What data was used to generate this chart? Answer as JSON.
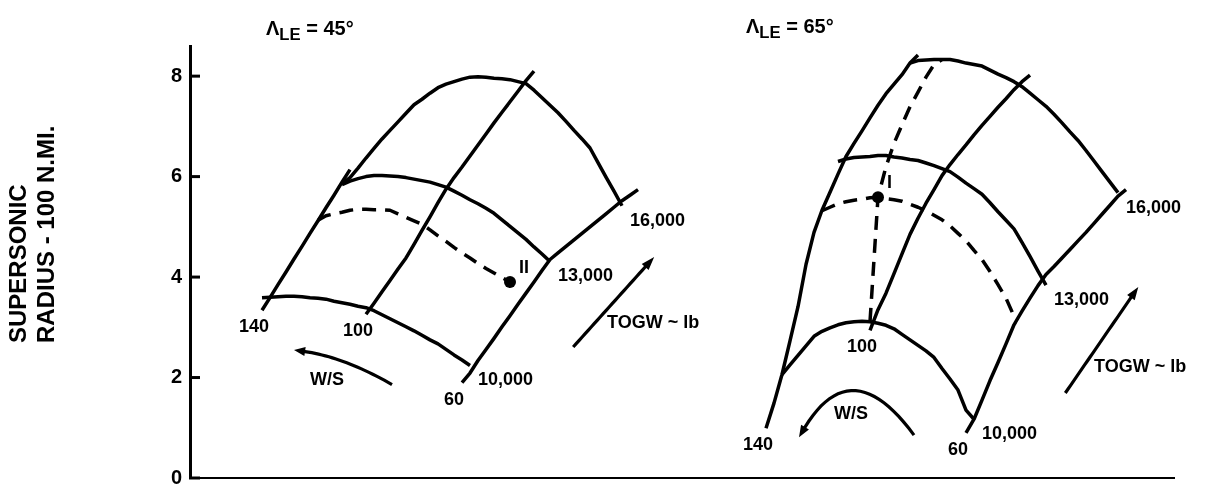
{
  "chart_data": {
    "type": "line",
    "ylabel": "SUPERSONIC RADIUS - 100 N.MI.",
    "ylim": [
      0,
      8.6
    ],
    "yticks": [
      0,
      2,
      4,
      6,
      8
    ],
    "tick_labels": "y",
    "marker": "none",
    "categories": [
      null,
      null,
      null,
      null,
      null,
      null,
      null,
      null,
      null,
      null,
      null,
      null,
      null,
      null,
      null,
      null,
      null,
      null,
      null,
      null,
      null,
      null,
      null,
      null,
      null,
      null,
      null,
      null,
      null,
      null,
      null,
      null,
      null,
      null,
      null,
      null,
      null,
      null,
      null,
      null,
      null,
      null,
      null,
      null,
      null,
      null,
      null,
      null,
      null,
      null,
      null,
      null,
      null,
      null,
      null,
      null,
      null,
      null,
      null,
      null,
      null,
      null,
      null,
      null,
      null,
      null,
      null,
      null,
      null,
      null,
      null,
      null,
      null,
      null,
      null,
      null,
      null,
      null,
      null,
      null,
      null,
      null,
      null,
      null,
      null,
      null,
      null,
      null,
      null,
      null,
      null,
      null,
      null,
      null,
      null,
      null,
      null,
      null,
      null,
      null,
      null,
      null,
      null,
      null,
      null,
      null,
      null,
      null,
      null,
      null,
      null,
      null,
      null,
      null,
      null,
      null,
      null,
      null,
      null,
      null,
      null,
      null,
      null,
      null
    ],
    "series": [
      {
        "name": "140",
        "color": "#000000",
        "values": [
          null,
          null,
          null,
          null,
          null,
          null,
          null,
          null,
          null,
          3.34,
          3.59,
          3.85,
          4.1,
          4.36,
          4.61,
          4.87,
          5.12,
          5.38,
          5.63,
          5.89,
          6.14,
          null,
          null,
          null,
          null,
          null,
          null,
          null,
          null,
          null,
          null,
          null,
          null,
          null,
          null,
          null,
          null,
          null,
          null,
          null,
          null,
          null,
          null,
          null,
          null,
          null,
          null,
          null,
          null,
          null,
          null,
          null,
          null,
          null,
          null,
          null,
          null,
          null,
          null,
          null,
          null,
          null,
          null,
          null,
          null,
          null,
          null,
          null,
          null,
          null,
          null,
          null,
          null,
          null,
          null,
          null,
          null,
          null,
          null,
          null,
          null,
          null,
          null,
          null,
          null,
          null,
          null,
          null,
          null,
          null,
          null,
          null,
          null,
          null,
          null,
          null,
          null,
          null,
          null,
          null,
          null,
          null,
          null,
          null,
          null,
          null,
          null,
          null,
          null,
          null,
          null,
          null,
          null,
          null,
          null,
          null,
          null,
          null,
          null,
          null,
          null,
          null,
          null,
          null
        ]
      },
      {
        "name": "100",
        "color": "#000000",
        "values": [
          null,
          null,
          null,
          null,
          null,
          null,
          null,
          null,
          null,
          null,
          null,
          null,
          null,
          null,
          null,
          null,
          null,
          null,
          null,
          null,
          null,
          null,
          3.26,
          3.48,
          3.71,
          3.93,
          4.16,
          4.38,
          4.65,
          4.93,
          5.2,
          5.48,
          5.75,
          5.98,
          6.19,
          6.41,
          6.63,
          6.85,
          7.07,
          7.28,
          7.49,
          7.7,
          7.91,
          8.1,
          null,
          null,
          null,
          null,
          null,
          null,
          null,
          null,
          null,
          null,
          null,
          null,
          null,
          null,
          null,
          null,
          null,
          null,
          null,
          null,
          null,
          null,
          null,
          null,
          null,
          null,
          null,
          null,
          null,
          null,
          null,
          null,
          null,
          null,
          null,
          null,
          null,
          null,
          null,
          null,
          null,
          null,
          null,
          null,
          null,
          null,
          null,
          null,
          null,
          null,
          null,
          null,
          null,
          null,
          null,
          null,
          null,
          null,
          null,
          null,
          null,
          null,
          null,
          null,
          null,
          null,
          null,
          null,
          null,
          null,
          null,
          null,
          null,
          null,
          null,
          null,
          null,
          null,
          null,
          null
        ]
      },
      {
        "name": "60",
        "color": "#000000",
        "values": [
          null,
          null,
          null,
          null,
          null,
          null,
          null,
          null,
          null,
          null,
          null,
          null,
          null,
          null,
          null,
          null,
          null,
          null,
          null,
          null,
          null,
          null,
          null,
          null,
          null,
          null,
          null,
          null,
          null,
          null,
          null,
          null,
          null,
          null,
          1.9,
          2.09,
          2.34,
          2.56,
          2.78,
          3.01,
          3.23,
          3.46,
          3.68,
          3.9,
          4.13,
          4.35,
          4.48,
          4.61,
          4.74,
          4.87,
          5,
          5.13,
          5.26,
          5.39,
          5.52,
          5.63,
          5.74,
          null,
          null,
          null,
          null,
          null,
          null,
          null,
          null,
          null,
          null,
          null,
          null,
          null,
          null,
          null,
          null,
          null,
          null,
          null,
          null,
          null,
          null,
          null,
          null,
          null,
          null,
          null,
          null,
          null,
          null,
          null,
          null,
          null,
          null,
          null,
          null,
          null,
          null,
          null,
          null,
          null,
          null,
          null,
          null,
          null,
          null,
          null,
          null,
          null,
          null,
          null,
          null,
          null,
          null,
          null,
          null,
          null,
          null,
          null,
          null,
          null,
          null,
          null,
          null,
          null,
          null,
          null
        ]
      },
      {
        "name": "10,000",
        "color": "#000000",
        "values": [
          null,
          null,
          null,
          null,
          null,
          null,
          null,
          null,
          null,
          3.59,
          3.6,
          3.61,
          3.62,
          3.62,
          3.61,
          3.59,
          3.58,
          3.56,
          3.52,
          3.49,
          3.46,
          3.42,
          3.39,
          3.33,
          3.25,
          3.17,
          3.09,
          3.01,
          2.93,
          2.84,
          2.75,
          2.67,
          2.56,
          2.45,
          2.35,
          2.24,
          null,
          null,
          null,
          null,
          null,
          null,
          null,
          null,
          null,
          null,
          null,
          null,
          null,
          null,
          null,
          null,
          null,
          null,
          null,
          null,
          null,
          null,
          null,
          null,
          null,
          null,
          null,
          null,
          null,
          null,
          null,
          null,
          null,
          null,
          null,
          null,
          null,
          null,
          null,
          null,
          null,
          null,
          null,
          null,
          null,
          null,
          null,
          null,
          null,
          null,
          null,
          null,
          null,
          null,
          null,
          null,
          null,
          null,
          null,
          null,
          null,
          null,
          null,
          null,
          null,
          null,
          null,
          null,
          null,
          null,
          null,
          null,
          null,
          null,
          null,
          null,
          null,
          null,
          null,
          null,
          null,
          null,
          null,
          null,
          null,
          null,
          null,
          null
        ]
      },
      {
        "name": "13,000",
        "color": "#000000",
        "values": [
          null,
          null,
          null,
          null,
          null,
          null,
          null,
          null,
          null,
          null,
          null,
          null,
          null,
          null,
          null,
          null,
          null,
          null,
          null,
          5.84,
          5.91,
          5.96,
          6,
          6.02,
          6.02,
          6.01,
          6,
          5.98,
          5.95,
          5.92,
          5.89,
          5.84,
          5.79,
          5.71,
          5.63,
          5.54,
          5.46,
          5.37,
          5.27,
          5.14,
          5.01,
          4.88,
          4.75,
          4.6,
          4.46,
          4.31,
          null,
          null,
          null,
          null,
          null,
          null,
          null,
          null,
          null,
          null,
          null,
          null,
          null,
          null,
          null,
          null,
          null,
          null,
          null,
          null,
          null,
          null,
          null,
          null,
          null,
          null,
          null,
          null,
          null,
          null,
          null,
          null,
          null,
          null,
          null,
          null,
          null,
          null,
          null,
          null,
          null,
          null,
          null,
          null,
          null,
          null,
          null,
          null,
          null,
          null,
          null,
          null,
          null,
          null,
          null,
          null,
          null,
          null,
          null,
          null,
          null,
          null,
          null,
          null,
          null,
          null,
          null,
          null,
          null,
          null,
          null,
          null,
          null,
          null,
          null,
          null,
          null,
          null
        ]
      },
      {
        "name": "16,000",
        "color": "#000000",
        "values": [
          null,
          null,
          null,
          null,
          null,
          null,
          null,
          null,
          null,
          null,
          null,
          null,
          null,
          null,
          null,
          null,
          null,
          null,
          null,
          5.86,
          5.98,
          6.17,
          6.37,
          6.56,
          6.75,
          6.92,
          7.09,
          7.26,
          7.43,
          7.54,
          7.66,
          7.77,
          7.84,
          7.89,
          7.94,
          7.98,
          7.99,
          7.98,
          7.96,
          7.95,
          7.93,
          7.89,
          7.85,
          7.72,
          7.57,
          7.42,
          7.27,
          7.1,
          6.92,
          6.75,
          6.57,
          6.28,
          5.99,
          5.71,
          5.42,
          null,
          null,
          null,
          null,
          null,
          null,
          null,
          null,
          null,
          null,
          null,
          null,
          null,
          null,
          null,
          null,
          null,
          null,
          null,
          null,
          null,
          null,
          null,
          null,
          null,
          null,
          null,
          null,
          null,
          null,
          null,
          null,
          null,
          null,
          null,
          null,
          null,
          null,
          null,
          null,
          null,
          null,
          null,
          null,
          null,
          null,
          null,
          null,
          null,
          null,
          null,
          null,
          null,
          null,
          null,
          null,
          null,
          null,
          null,
          null,
          null,
          null,
          null,
          null,
          null,
          null,
          null,
          null,
          null
        ]
      },
      {
        "color": "#000000",
        "line_style": "dashed",
        "values": [
          null,
          null,
          null,
          null,
          null,
          null,
          null,
          null,
          null,
          null,
          null,
          null,
          null,
          null,
          null,
          null,
          5.13,
          5.22,
          5.26,
          5.29,
          5.33,
          5.35,
          5.35,
          5.34,
          5.34,
          5.33,
          5.26,
          5.19,
          5.12,
          5.05,
          4.94,
          4.82,
          4.71,
          4.59,
          4.48,
          4.38,
          4.27,
          4.17,
          4.08,
          3.99,
          3.9,
          null,
          null,
          null,
          null,
          null,
          null,
          null,
          null,
          null,
          null,
          null,
          null,
          null,
          null,
          null,
          null,
          null,
          null,
          null,
          null,
          null,
          null,
          null,
          null,
          null,
          null,
          null,
          null,
          null,
          null,
          null,
          null,
          null,
          null,
          null,
          null,
          null,
          null,
          null,
          null,
          null,
          null,
          null,
          null,
          null,
          null,
          null,
          null,
          null,
          null,
          null,
          null,
          null,
          null,
          null,
          null,
          null,
          null,
          null,
          null,
          null,
          null,
          null,
          null,
          null,
          null,
          null,
          null,
          null,
          null,
          null,
          null,
          null,
          null,
          null,
          null,
          null,
          null,
          null,
          null,
          null,
          null,
          null
        ]
      },
      {
        "name": "II",
        "type": "scatter",
        "marker": "circle",
        "color": "#000000",
        "values": [
          null,
          null,
          null,
          null,
          null,
          null,
          null,
          null,
          null,
          null,
          null,
          null,
          null,
          null,
          null,
          null,
          null,
          null,
          null,
          null,
          null,
          null,
          null,
          null,
          null,
          null,
          null,
          null,
          null,
          null,
          null,
          null,
          null,
          null,
          null,
          null,
          null,
          null,
          null,
          null,
          3.9,
          null,
          null,
          null,
          null,
          null,
          null,
          null,
          null,
          null,
          null,
          null,
          null,
          null,
          null,
          null,
          null,
          null,
          null,
          null,
          null,
          null,
          null,
          null,
          null,
          null,
          null,
          null,
          null,
          null,
          null,
          null,
          null,
          null,
          null,
          null,
          null,
          null,
          null,
          null,
          null,
          null,
          null,
          null,
          null,
          null,
          null,
          null,
          null,
          null,
          null,
          null,
          null,
          null,
          null,
          null,
          null,
          null,
          null,
          null,
          null,
          null,
          null,
          null,
          null,
          null,
          null,
          null,
          null,
          null,
          null,
          null,
          null,
          null,
          null,
          null,
          null,
          null,
          null,
          null,
          null,
          null,
          null,
          null
        ]
      },
      {
        "name": "140",
        "color": "#000000",
        "values": [
          null,
          null,
          null,
          null,
          null,
          null,
          null,
          null,
          null,
          null,
          null,
          null,
          null,
          null,
          null,
          null,
          null,
          null,
          null,
          null,
          null,
          null,
          null,
          null,
          null,
          null,
          null,
          null,
          null,
          null,
          null,
          null,
          null,
          null,
          null,
          null,
          null,
          null,
          null,
          null,
          null,
          null,
          null,
          null,
          null,
          null,
          null,
          null,
          null,
          null,
          null,
          null,
          null,
          null,
          null,
          null,
          null,
          null,
          null,
          null,
          null,
          null,
          null,
          null,
          null,
          null,
          null,
          null,
          null,
          null,
          null,
          null,
          0.99,
          1.49,
          2.06,
          2.73,
          3.41,
          4.25,
          4.89,
          5.33,
          5.69,
          6.05,
          6.4,
          6.66,
          6.91,
          7.17,
          7.42,
          7.65,
          7.84,
          8.03,
          8.26,
          8.42,
          null,
          null,
          null,
          null,
          null,
          null,
          null,
          null,
          null,
          null,
          null,
          null,
          null,
          null,
          null,
          null,
          null,
          null,
          null,
          null,
          null,
          null,
          null,
          null,
          null,
          null,
          null,
          null,
          null,
          null,
          null,
          null
        ]
      },
      {
        "name": "100",
        "color": "#000000",
        "values": [
          null,
          null,
          null,
          null,
          null,
          null,
          null,
          null,
          null,
          null,
          null,
          null,
          null,
          null,
          null,
          null,
          null,
          null,
          null,
          null,
          null,
          null,
          null,
          null,
          null,
          null,
          null,
          null,
          null,
          null,
          null,
          null,
          null,
          null,
          null,
          null,
          null,
          null,
          null,
          null,
          null,
          null,
          null,
          null,
          null,
          null,
          null,
          null,
          null,
          null,
          null,
          null,
          null,
          null,
          null,
          null,
          null,
          null,
          null,
          null,
          null,
          null,
          null,
          null,
          null,
          null,
          null,
          null,
          null,
          null,
          null,
          null,
          null,
          null,
          null,
          null,
          null,
          null,
          null,
          null,
          null,
          null,
          null,
          null,
          null,
          2.94,
          3.35,
          3.68,
          4.07,
          4.46,
          4.85,
          5.17,
          5.47,
          5.74,
          6.02,
          6.24,
          6.44,
          6.63,
          6.83,
          7.02,
          7.2,
          7.38,
          7.55,
          7.73,
          7.89,
          8.02,
          null,
          null,
          null,
          null,
          null,
          null,
          null,
          null,
          null,
          null,
          null,
          null,
          null,
          null,
          null,
          null,
          null,
          null
        ]
      },
      {
        "name": "60",
        "color": "#000000",
        "values": [
          null,
          null,
          null,
          null,
          null,
          null,
          null,
          null,
          null,
          null,
          null,
          null,
          null,
          null,
          null,
          null,
          null,
          null,
          null,
          null,
          null,
          null,
          null,
          null,
          null,
          null,
          null,
          null,
          null,
          null,
          null,
          null,
          null,
          null,
          null,
          null,
          null,
          null,
          null,
          null,
          null,
          null,
          null,
          null,
          null,
          null,
          null,
          null,
          null,
          null,
          null,
          null,
          null,
          null,
          null,
          null,
          null,
          null,
          null,
          null,
          null,
          null,
          null,
          null,
          null,
          null,
          null,
          null,
          null,
          null,
          null,
          null,
          null,
          null,
          null,
          null,
          null,
          null,
          null,
          null,
          null,
          null,
          null,
          null,
          null,
          null,
          null,
          null,
          null,
          null,
          null,
          null,
          null,
          null,
          null,
          null,
          null,
          0.9,
          1.17,
          1.55,
          1.94,
          2.3,
          2.67,
          3.05,
          3.32,
          3.58,
          3.83,
          4.05,
          4.21,
          4.38,
          4.55,
          4.72,
          4.89,
          5.07,
          5.25,
          5.43,
          5.61,
          5.74,
          null,
          null,
          null,
          null,
          null,
          null
        ]
      },
      {
        "name": "10,000",
        "color": "#000000",
        "values": [
          null,
          null,
          null,
          null,
          null,
          null,
          null,
          null,
          null,
          null,
          null,
          null,
          null,
          null,
          null,
          null,
          null,
          null,
          null,
          null,
          null,
          null,
          null,
          null,
          null,
          null,
          null,
          null,
          null,
          null,
          null,
          null,
          null,
          null,
          null,
          null,
          null,
          null,
          null,
          null,
          null,
          null,
          null,
          null,
          null,
          null,
          null,
          null,
          null,
          null,
          null,
          null,
          null,
          null,
          null,
          null,
          null,
          null,
          null,
          null,
          null,
          null,
          null,
          null,
          null,
          null,
          null,
          null,
          null,
          null,
          null,
          null,
          null,
          null,
          2.06,
          2.25,
          2.44,
          2.63,
          2.82,
          2.92,
          2.99,
          3.05,
          3.09,
          3.11,
          3.12,
          3.11,
          3.08,
          3.04,
          2.97,
          2.86,
          2.75,
          2.64,
          2.53,
          2.4,
          2.18,
          1.97,
          1.75,
          1.35,
          1.17,
          null,
          null,
          null,
          null,
          null,
          null,
          null,
          null,
          null,
          null,
          null,
          null,
          null,
          null,
          null,
          null,
          null,
          null,
          null,
          null,
          null,
          null,
          null,
          null,
          null
        ]
      },
      {
        "name": "13,000",
        "color": "#000000",
        "values": [
          null,
          null,
          null,
          null,
          null,
          null,
          null,
          null,
          null,
          null,
          null,
          null,
          null,
          null,
          null,
          null,
          null,
          null,
          null,
          null,
          null,
          null,
          null,
          null,
          null,
          null,
          null,
          null,
          null,
          null,
          null,
          null,
          null,
          null,
          null,
          null,
          null,
          null,
          null,
          null,
          null,
          null,
          null,
          null,
          null,
          null,
          null,
          null,
          null,
          null,
          null,
          null,
          null,
          null,
          null,
          null,
          null,
          null,
          null,
          null,
          null,
          null,
          null,
          null,
          null,
          null,
          null,
          null,
          null,
          null,
          null,
          null,
          null,
          null,
          null,
          null,
          null,
          null,
          null,
          null,
          null,
          6.3,
          6.35,
          6.38,
          6.39,
          6.4,
          6.42,
          6.42,
          6.39,
          6.37,
          6.34,
          6.32,
          6.27,
          6.22,
          6.16,
          6.1,
          5.99,
          5.87,
          5.76,
          5.65,
          5.48,
          5.3,
          5.13,
          4.96,
          4.69,
          4.41,
          4.12,
          3.84,
          null,
          null,
          null,
          null,
          null,
          null,
          null,
          null,
          null,
          null,
          null,
          null,
          null,
          null,
          null,
          null
        ]
      },
      {
        "name": "16,000",
        "color": "#000000",
        "values": [
          null,
          null,
          null,
          null,
          null,
          null,
          null,
          null,
          null,
          null,
          null,
          null,
          null,
          null,
          null,
          null,
          null,
          null,
          null,
          null,
          null,
          null,
          null,
          null,
          null,
          null,
          null,
          null,
          null,
          null,
          null,
          null,
          null,
          null,
          null,
          null,
          null,
          null,
          null,
          null,
          null,
          null,
          null,
          null,
          null,
          null,
          null,
          null,
          null,
          null,
          null,
          null,
          null,
          null,
          null,
          null,
          null,
          null,
          null,
          null,
          null,
          null,
          null,
          null,
          null,
          null,
          null,
          null,
          null,
          null,
          null,
          null,
          null,
          null,
          null,
          null,
          null,
          null,
          null,
          null,
          null,
          null,
          null,
          null,
          null,
          null,
          null,
          null,
          null,
          null,
          8.26,
          8.31,
          8.32,
          8.33,
          8.33,
          8.33,
          8.3,
          8.26,
          8.23,
          8.2,
          8.12,
          8.04,
          7.97,
          7.89,
          7.79,
          7.66,
          7.53,
          7.4,
          7.24,
          7.07,
          6.89,
          6.72,
          6.52,
          6.31,
          6.1,
          5.89,
          5.68,
          null,
          null,
          null,
          null,
          null,
          null,
          null
        ]
      },
      {
        "color": "#000000",
        "line_style": "dashed",
        "values": [
          null,
          null,
          null,
          null,
          null,
          null,
          null,
          null,
          null,
          null,
          null,
          null,
          null,
          null,
          null,
          null,
          null,
          null,
          null,
          null,
          null,
          null,
          null,
          null,
          null,
          null,
          null,
          null,
          null,
          null,
          null,
          null,
          null,
          null,
          null,
          null,
          null,
          null,
          null,
          null,
          null,
          null,
          null,
          null,
          null,
          null,
          null,
          null,
          null,
          null,
          null,
          null,
          null,
          null,
          null,
          null,
          null,
          null,
          null,
          null,
          null,
          null,
          null,
          null,
          null,
          null,
          null,
          null,
          null,
          null,
          null,
          null,
          null,
          null,
          null,
          null,
          null,
          null,
          null,
          null,
          null,
          null,
          null,
          null,
          null,
          3.11,
          5.59,
          6.2,
          6.66,
          7.03,
          7.39,
          7.68,
          7.98,
          8.23,
          8.33,
          null,
          null,
          null,
          null,
          null,
          null,
          null,
          null,
          null,
          null,
          null,
          null,
          null,
          null,
          null,
          null,
          null,
          null,
          null,
          null,
          null,
          null,
          null,
          null,
          null,
          null,
          null,
          null,
          null
        ]
      },
      {
        "color": "#000000",
        "line_style": "dashed",
        "values": [
          null,
          null,
          null,
          null,
          null,
          null,
          null,
          null,
          null,
          null,
          null,
          null,
          null,
          null,
          null,
          null,
          null,
          null,
          null,
          null,
          null,
          null,
          null,
          null,
          null,
          null,
          null,
          null,
          null,
          null,
          null,
          null,
          null,
          null,
          null,
          null,
          null,
          null,
          null,
          null,
          null,
          null,
          null,
          null,
          null,
          null,
          null,
          null,
          null,
          null,
          null,
          null,
          null,
          null,
          null,
          null,
          null,
          null,
          null,
          null,
          null,
          null,
          null,
          null,
          null,
          null,
          null,
          null,
          null,
          null,
          null,
          null,
          null,
          null,
          null,
          null,
          null,
          null,
          null,
          5.32,
          5.39,
          5.46,
          5.5,
          5.53,
          5.55,
          5.58,
          5.59,
          5.56,
          5.54,
          5.51,
          5.45,
          5.39,
          5.32,
          5.23,
          5.14,
          5.02,
          4.87,
          4.72,
          4.53,
          4.35,
          4.11,
          3.85,
          3.58,
          3.22,
          null,
          null,
          null,
          null,
          null,
          null,
          null,
          null,
          null,
          null,
          null,
          null,
          null,
          null,
          null,
          null,
          null,
          null,
          null,
          null
        ]
      },
      {
        "name": "I",
        "type": "scatter",
        "marker": "circle",
        "color": "#000000",
        "values": [
          null,
          null,
          null,
          null,
          null,
          null,
          null,
          null,
          null,
          null,
          null,
          null,
          null,
          null,
          null,
          null,
          null,
          null,
          null,
          null,
          null,
          null,
          null,
          null,
          null,
          null,
          null,
          null,
          null,
          null,
          null,
          null,
          null,
          null,
          null,
          null,
          null,
          null,
          null,
          null,
          null,
          null,
          null,
          null,
          null,
          null,
          null,
          null,
          null,
          null,
          null,
          null,
          null,
          null,
          null,
          null,
          null,
          null,
          null,
          null,
          null,
          null,
          null,
          null,
          null,
          null,
          null,
          null,
          null,
          null,
          null,
          null,
          null,
          null,
          null,
          null,
          null,
          null,
          null,
          null,
          null,
          null,
          null,
          null,
          null,
          null,
          5.59,
          null,
          null,
          null,
          null,
          null,
          null,
          null,
          null,
          null,
          null,
          null,
          null,
          null,
          null,
          null,
          null,
          null,
          null,
          null,
          null,
          null,
          null,
          null,
          null,
          null,
          null,
          null,
          null,
          null,
          null,
          null,
          null,
          null,
          null,
          null,
          null,
          null
        ]
      }
    ],
    "annotations": [
      "Λ$_{LE}$ = 45°",
      "Λ$_{LE}$ = 65°",
      "W/S",
      "TOGW ~ lb",
      "W/S",
      "TOGW ~ lb"
    ]
  }
}
